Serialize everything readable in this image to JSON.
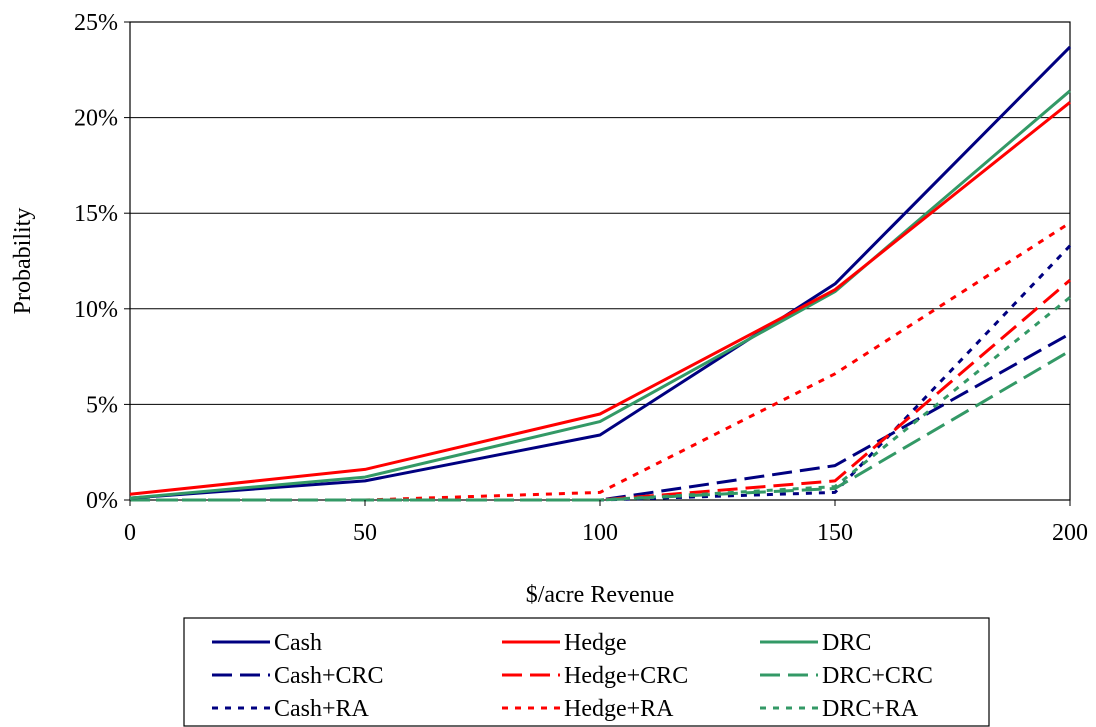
{
  "chart_data": {
    "type": "line",
    "xlabel": "$/acre Revenue",
    "ylabel": "Probability",
    "xlim": [
      0,
      200
    ],
    "ylim": [
      0,
      25
    ],
    "x_ticks": [
      0,
      50,
      100,
      150,
      200
    ],
    "x_tick_labels": [
      "0",
      "50",
      "100",
      "150",
      "200"
    ],
    "y_ticks": [
      0,
      5,
      10,
      15,
      20,
      25
    ],
    "y_tick_labels": [
      "0%",
      "5%",
      "10%",
      "15%",
      "20%",
      "25%"
    ],
    "grid": "horizontal",
    "legend_placement": "bottom",
    "x": [
      0,
      50,
      100,
      150,
      200
    ],
    "series": [
      {
        "name": "Cash",
        "color": "#000080",
        "dash": "solid",
        "values": [
          0.1,
          1.0,
          3.4,
          11.3,
          23.7
        ]
      },
      {
        "name": "Cash+CRC",
        "color": "#000080",
        "dash": "dashed",
        "values": [
          0.0,
          0.0,
          0.0,
          1.8,
          8.7
        ]
      },
      {
        "name": "Cash+RA",
        "color": "#000080",
        "dash": "dotted",
        "values": [
          0.0,
          0.0,
          0.0,
          0.4,
          13.3
        ]
      },
      {
        "name": "Hedge",
        "color": "#ff0000",
        "dash": "solid",
        "values": [
          0.3,
          1.6,
          4.5,
          11.0,
          20.8
        ]
      },
      {
        "name": "Hedge+CRC",
        "color": "#ff0000",
        "dash": "dashed",
        "values": [
          0.0,
          0.0,
          0.0,
          1.0,
          11.5
        ]
      },
      {
        "name": "Hedge+RA",
        "color": "#ff0000",
        "dash": "dotted",
        "values": [
          0.0,
          0.0,
          0.4,
          6.6,
          14.5
        ]
      },
      {
        "name": "DRC",
        "color": "#339966",
        "dash": "solid",
        "values": [
          0.1,
          1.2,
          4.1,
          10.9,
          21.4
        ]
      },
      {
        "name": "DRC+CRC",
        "color": "#339966",
        "dash": "dashed",
        "values": [
          0.0,
          0.0,
          0.0,
          0.6,
          7.8
        ]
      },
      {
        "name": "DRC+RA",
        "color": "#339966",
        "dash": "dotted",
        "values": [
          0.0,
          0.0,
          0.0,
          0.7,
          10.6
        ]
      }
    ]
  }
}
